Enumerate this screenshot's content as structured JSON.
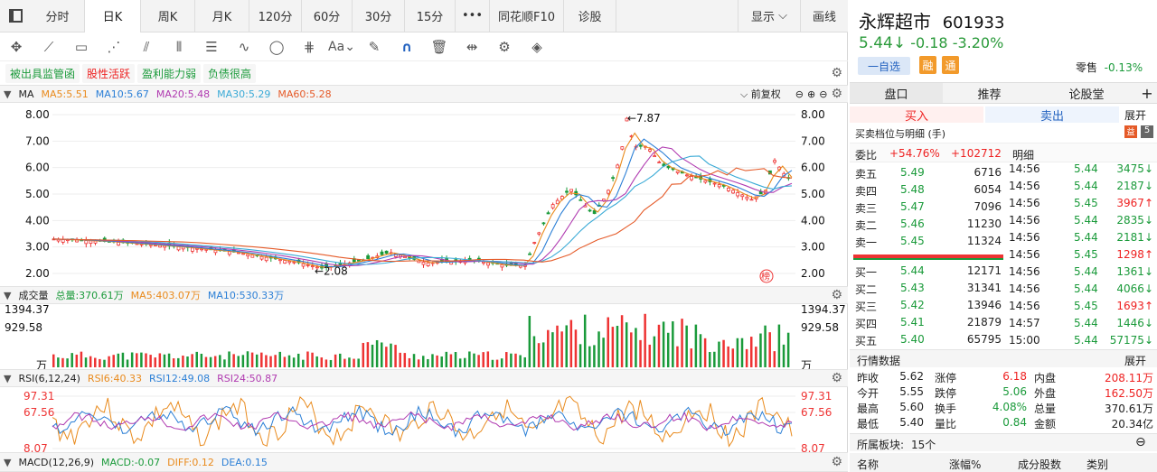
{
  "toolbar": {
    "tabs": [
      "分时",
      "日K",
      "周K",
      "月K",
      "120分",
      "60分",
      "30分",
      "15分",
      "•••",
      "同花顺F10",
      "诊股"
    ],
    "active": "日K",
    "display": "显示",
    "draw": "画线"
  },
  "tags": [
    "被出具监管函",
    "股性活跃",
    "盈利能力弱",
    "负债很高"
  ],
  "ma": {
    "label": "MA",
    "ma5": "MA5:5.51",
    "ma10": "MA10:5.67",
    "ma20": "MA20:5.48",
    "ma30": "MA30:5.29",
    "ma60": "MA60:5.28",
    "adjust": "前复权",
    "high_label": "←7.87",
    "low_label": "←2.08",
    "yticks": [
      "8.00",
      "7.00",
      "6.00",
      "5.00",
      "4.00",
      "3.00",
      "2.00"
    ]
  },
  "vol": {
    "label": "成交量",
    "total": "总量:370.61万",
    "ma5": "MA5:403.07万",
    "ma10": "MA10:530.33万",
    "yticks": [
      "1394.37",
      "929.58",
      "万"
    ]
  },
  "rsi": {
    "label": "RSI(6,12,24)",
    "r6": "RSI6:40.33",
    "r12": "RSI12:49.08",
    "r24": "RSI24:50.87",
    "yticks": [
      "97.31",
      "67.56",
      "8.07"
    ]
  },
  "macd": {
    "label": "MACD(12,26,9)",
    "macd": "MACD:-0.07",
    "diff": "DIFF:0.12",
    "dea": "DEA:0.15"
  },
  "stock": {
    "name": "永辉超市",
    "code": "601933",
    "price": "5.44↓",
    "chg": "-0.18",
    "pct": "-3.20%",
    "watch": "一自选",
    "rong": "融",
    "tong": "通",
    "sector": "零售",
    "sector_pct": "-0.13%"
  },
  "rtabs": [
    "盘口",
    "推荐",
    "论股堂",
    "+"
  ],
  "trade": {
    "buy": "买入",
    "sell": "卖出",
    "expand": "展开",
    "title": "买卖档位与明细 (手)",
    "weibi": "委比",
    "wb1": "+54.76%",
    "wb2": "+102712",
    "mingxi": "明细"
  },
  "asks": [
    {
      "l": "卖五",
      "p": "5.49",
      "v": "6716"
    },
    {
      "l": "卖四",
      "p": "5.48",
      "v": "6054"
    },
    {
      "l": "卖三",
      "p": "5.47",
      "v": "7096"
    },
    {
      "l": "卖二",
      "p": "5.46",
      "v": "11230"
    },
    {
      "l": "卖一",
      "p": "5.45",
      "v": "11324"
    }
  ],
  "bids": [
    {
      "l": "买一",
      "p": "5.44",
      "v": "12171"
    },
    {
      "l": "买二",
      "p": "5.43",
      "v": "31341"
    },
    {
      "l": "买三",
      "p": "5.42",
      "v": "13946"
    },
    {
      "l": "买四",
      "p": "5.41",
      "v": "21879"
    },
    {
      "l": "买五",
      "p": "5.40",
      "v": "65795"
    }
  ],
  "ticks": [
    {
      "t": "14:56",
      "p": "5.44",
      "v": "3475↓",
      "c": "g"
    },
    {
      "t": "14:56",
      "p": "5.44",
      "v": "2187↓",
      "c": "g"
    },
    {
      "t": "14:56",
      "p": "5.45",
      "v": "3967↑",
      "c": "r"
    },
    {
      "t": "14:56",
      "p": "5.44",
      "v": "2835↓",
      "c": "g"
    },
    {
      "t": "14:56",
      "p": "5.44",
      "v": "2181↓",
      "c": "g"
    },
    {
      "t": "14:56",
      "p": "5.45",
      "v": "1298↑",
      "c": "r"
    },
    {
      "t": "14:56",
      "p": "5.44",
      "v": "1361↓",
      "c": "g"
    },
    {
      "t": "14:56",
      "p": "5.44",
      "v": "4066↓",
      "c": "g"
    },
    {
      "t": "14:56",
      "p": "5.45",
      "v": "1693↑",
      "c": "r"
    },
    {
      "t": "14:57",
      "p": "5.44",
      "v": "1446↓",
      "c": "g"
    },
    {
      "t": "15:00",
      "p": "5.44",
      "v": "57175↓",
      "c": "g"
    }
  ],
  "quote": {
    "title": "行情数据",
    "expand": "展开",
    "rows": [
      [
        "昨收",
        "5.62",
        "涨停",
        "6.18",
        "内盘",
        "208.11万"
      ],
      [
        "今开",
        "5.55",
        "跌停",
        "5.06",
        "外盘",
        "162.50万"
      ],
      [
        "最高",
        "5.60",
        "换手",
        "4.08%",
        "总量",
        "370.61万"
      ],
      [
        "最低",
        "5.40",
        "量比",
        "0.84",
        "金额",
        "20.34亿"
      ]
    ]
  },
  "sector": {
    "label": "所属板块:",
    "count": "15个",
    "cols": [
      "名称",
      "涨幅%",
      "成分股数",
      "类别"
    ]
  }
}
